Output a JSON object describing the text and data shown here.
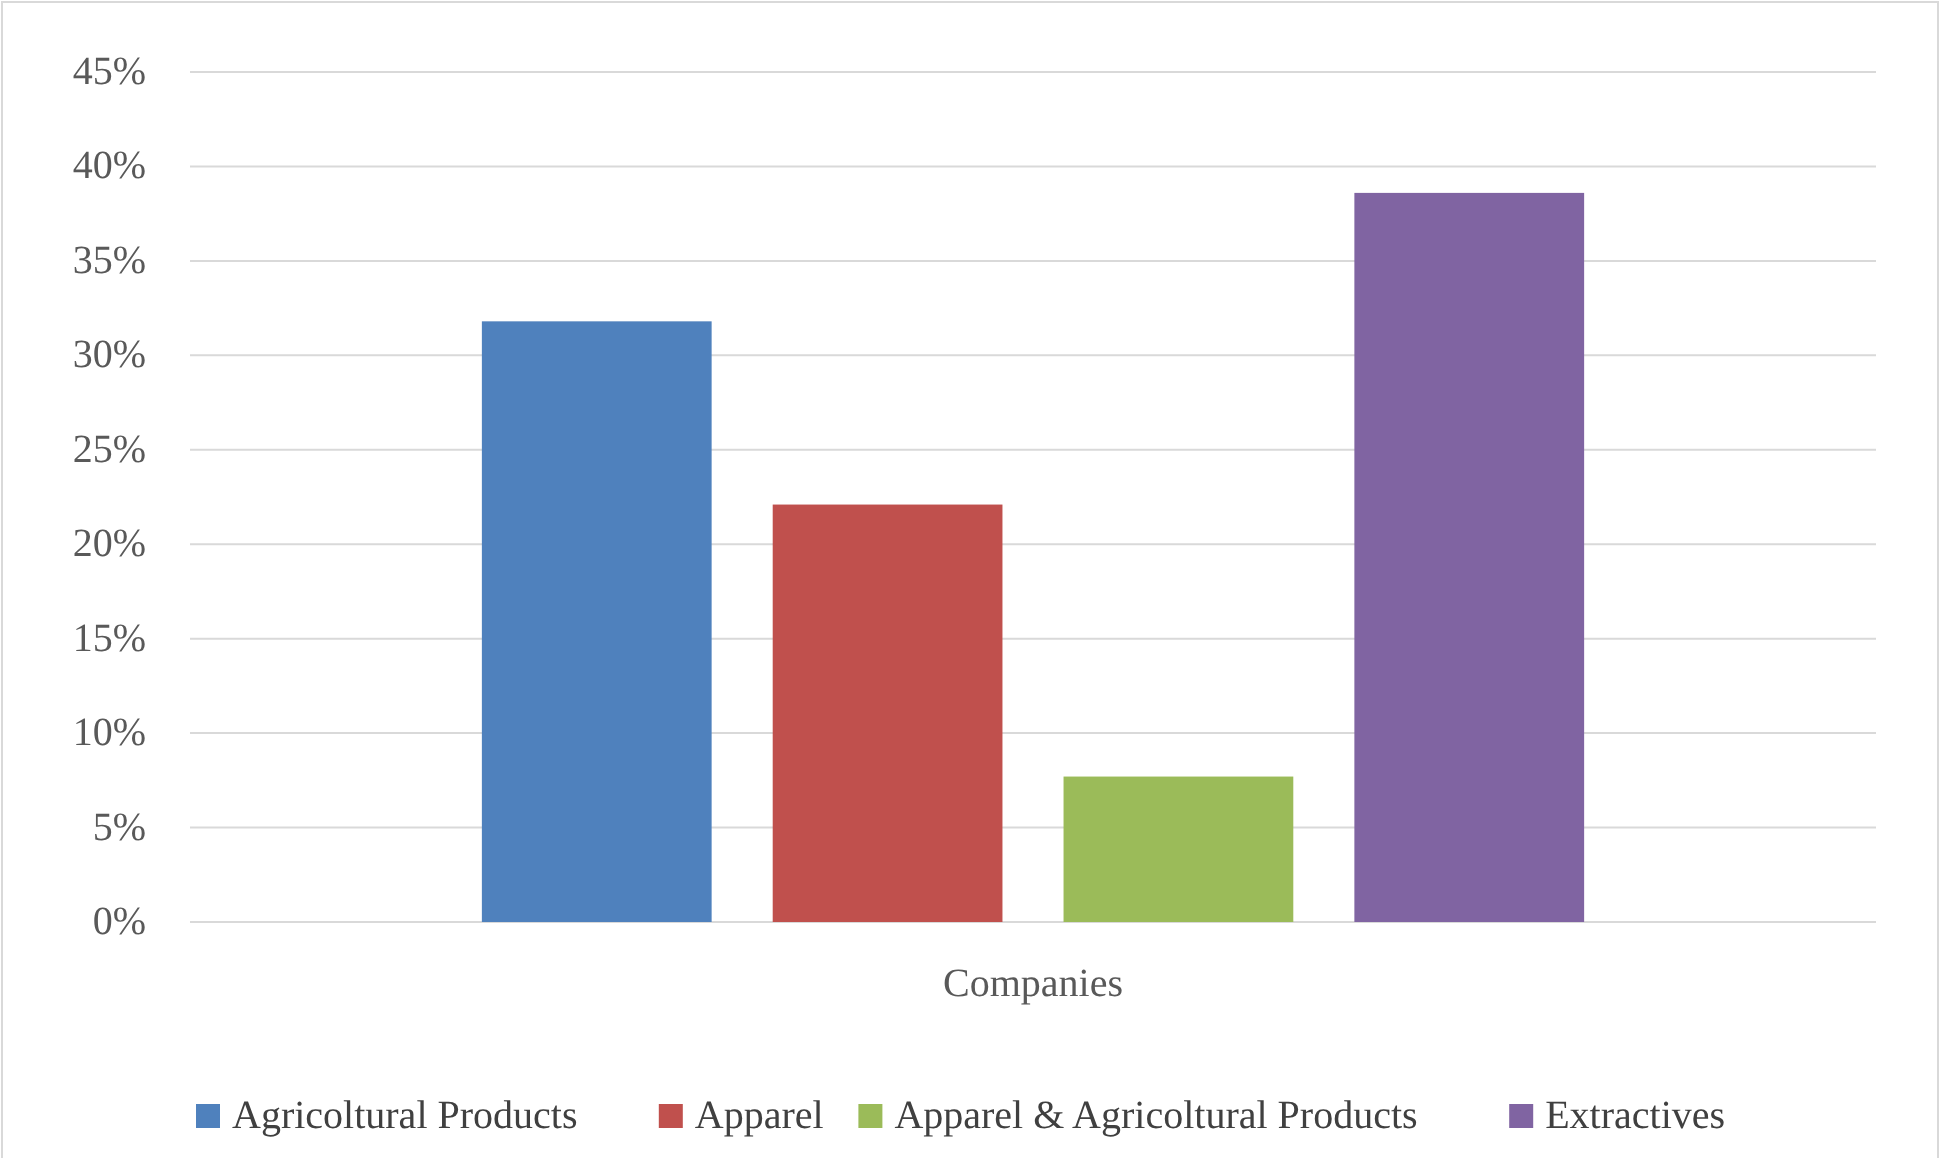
{
  "chart_data": {
    "type": "bar",
    "categories": [
      "Companies"
    ],
    "series": [
      {
        "name": "Agricoltural Products",
        "color": "#4f81bd",
        "values": [
          31.8
        ]
      },
      {
        "name": "Apparel",
        "color": "#c0504d",
        "values": [
          22.1
        ]
      },
      {
        "name": "Apparel & Agricoltural Products",
        "color": "#9bbb59",
        "values": [
          7.7
        ]
      },
      {
        "name": "Extractives",
        "color": "#8064a2",
        "values": [
          38.6
        ]
      }
    ],
    "ylim": [
      0,
      45
    ],
    "yticks": [
      {
        "value": 0,
        "label": "0%"
      },
      {
        "value": 5,
        "label": "5%"
      },
      {
        "value": 10,
        "label": "10%"
      },
      {
        "value": 15,
        "label": "15%"
      },
      {
        "value": 20,
        "label": "20%"
      },
      {
        "value": 25,
        "label": "25%"
      },
      {
        "value": 30,
        "label": "30%"
      },
      {
        "value": 35,
        "label": "35%"
      },
      {
        "value": 40,
        "label": "40%"
      },
      {
        "value": 45,
        "label": "45%"
      }
    ],
    "grid": "y",
    "legend": "bottom"
  }
}
